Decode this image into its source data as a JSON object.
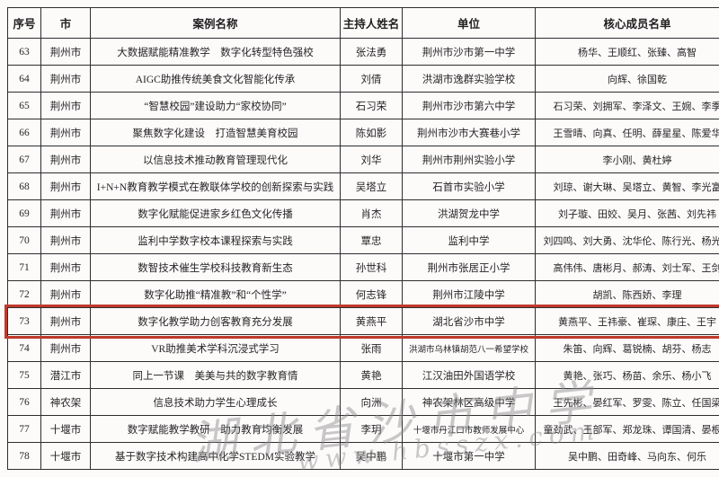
{
  "table": {
    "columns": [
      {
        "key": "serial",
        "label": "序号"
      },
      {
        "key": "city",
        "label": "市"
      },
      {
        "key": "case_name",
        "label": "案例名称"
      },
      {
        "key": "host",
        "label": "主持人姓名"
      },
      {
        "key": "unit",
        "label": "单位"
      },
      {
        "key": "members",
        "label": "核心成员名单"
      }
    ],
    "rows": [
      {
        "serial": "63",
        "city": "荆州市",
        "case_name": "大数据赋能精准教学　数字化转型特色强校",
        "host": "张法勇",
        "unit": "荆州市沙市第一中学",
        "members": "杨华、王顺红、张臻、高智"
      },
      {
        "serial": "64",
        "city": "荆州市",
        "case_name": "AIGC助推传统美食文化智能化传承",
        "host": "刘倩",
        "unit": "洪湖市逸群实验学校",
        "members": "向辉、徐国乾"
      },
      {
        "serial": "65",
        "city": "荆州市",
        "case_name": "“智慧校园”建设助力“家校协同”",
        "host": "石习荣",
        "unit": "荆州市沙市第六中学",
        "members": "石习荣、刘拥军、李泽文、王婉、李季"
      },
      {
        "serial": "66",
        "city": "荆州市",
        "case_name": "聚焦数字化建设　打造智慧美育校园",
        "host": "陈如影",
        "unit": "荆州市沙市大赛巷小学",
        "members": "王雪晴、向真、任明、薛星星、陈爱华"
      },
      {
        "serial": "67",
        "city": "荆州市",
        "case_name": "以信息技术推动教育管理现代化",
        "host": "刘华",
        "unit": "荆州市荆州实验小学",
        "members": "李小刚、黄杜婷"
      },
      {
        "serial": "68",
        "city": "荆州市",
        "case_name": "I+N+N教育教学模式在教联体学校的创新探索与实践",
        "host": "吴塔立",
        "unit": "石首市实验小学",
        "members": "刘琼、谢大琳、吴塔立、黄智、李光富"
      },
      {
        "serial": "69",
        "city": "荆州市",
        "case_name": "数字化赋能促进家乡红色文化传播",
        "host": "肖杰",
        "unit": "洪湖贺龙中学",
        "members": "刘子璇、田姣、吴月、张茜、刘先祎"
      },
      {
        "serial": "70",
        "city": "荆州市",
        "case_name": "监利中学数字校本课程探索与实践",
        "host": "覃忠",
        "unit": "监利中学",
        "members": "刘四鸣、刘大勇、沈华伦、陈行光、杨光辉"
      },
      {
        "serial": "71",
        "city": "荆州市",
        "case_name": "数智技术催生学校科技教育新生态",
        "host": "孙世科",
        "unit": "荆州市张居正小学",
        "members": "高伟伟、唐彬月、郝涛、刘士军、王剑"
      },
      {
        "serial": "72",
        "city": "荆州市",
        "case_name": "数字化助推“精准教”和“个性学”",
        "host": "何志锋",
        "unit": "荆州市江陵中学",
        "members": "胡凯、陈西娇、李理"
      },
      {
        "serial": "73",
        "city": "荆州市",
        "case_name": "数字化教学助力创客教育充分发展",
        "host": "黄燕平",
        "unit": "湖北省沙市中学",
        "members": "黄燕平、王祎豪、崔琛、康庄、王宇"
      },
      {
        "serial": "74",
        "city": "荆州市",
        "case_name": "VR助推美术学科沉浸式学习",
        "host": "张雨",
        "unit": "洪湖市乌林镇胡范八一希望学校",
        "members": "朱笛、向辉、葛锐楠、胡芬、杨志"
      },
      {
        "serial": "75",
        "city": "潜江市",
        "case_name": "同上一节课　美美与共的数字教育情",
        "host": "黄艳",
        "unit": "江汉油田外国语学校",
        "members": "黄艳、张巧、杨苗、余乐、杨小飞"
      },
      {
        "serial": "76",
        "city": "神农架",
        "case_name": "信息技术助力学生心理成长",
        "host": "向洲",
        "unit": "神农架林区高级中学",
        "members": "王先彬、晏红军、罗雯、陈立、任国梁"
      },
      {
        "serial": "77",
        "city": "十堰市",
        "case_name": "数字赋能教学教研　助力教育均衡发展",
        "host": "李玥",
        "unit": "十堰市丹江口市教师发展中心",
        "members": "童劲武、王部军、郑龙珠、谭国清、晏根合"
      },
      {
        "serial": "78",
        "city": "十堰市",
        "case_name": "基于数字技术构建高中化学STEDM实验教学",
        "host": "吴中鹏",
        "unit": "十堰市第一中学",
        "members": "吴中鹏、田奇峰、马向东、何乐"
      }
    ],
    "highlight_row_id": "73",
    "highlight_color": "#c0392b"
  },
  "watermark": {
    "line1": "湖北省沙市中学",
    "line2": "www.hbsszx.com"
  },
  "colors": {
    "border": "#2e2e2e",
    "text": "#262626",
    "background": "#fdfafa",
    "watermark": "#8a8a8a"
  }
}
